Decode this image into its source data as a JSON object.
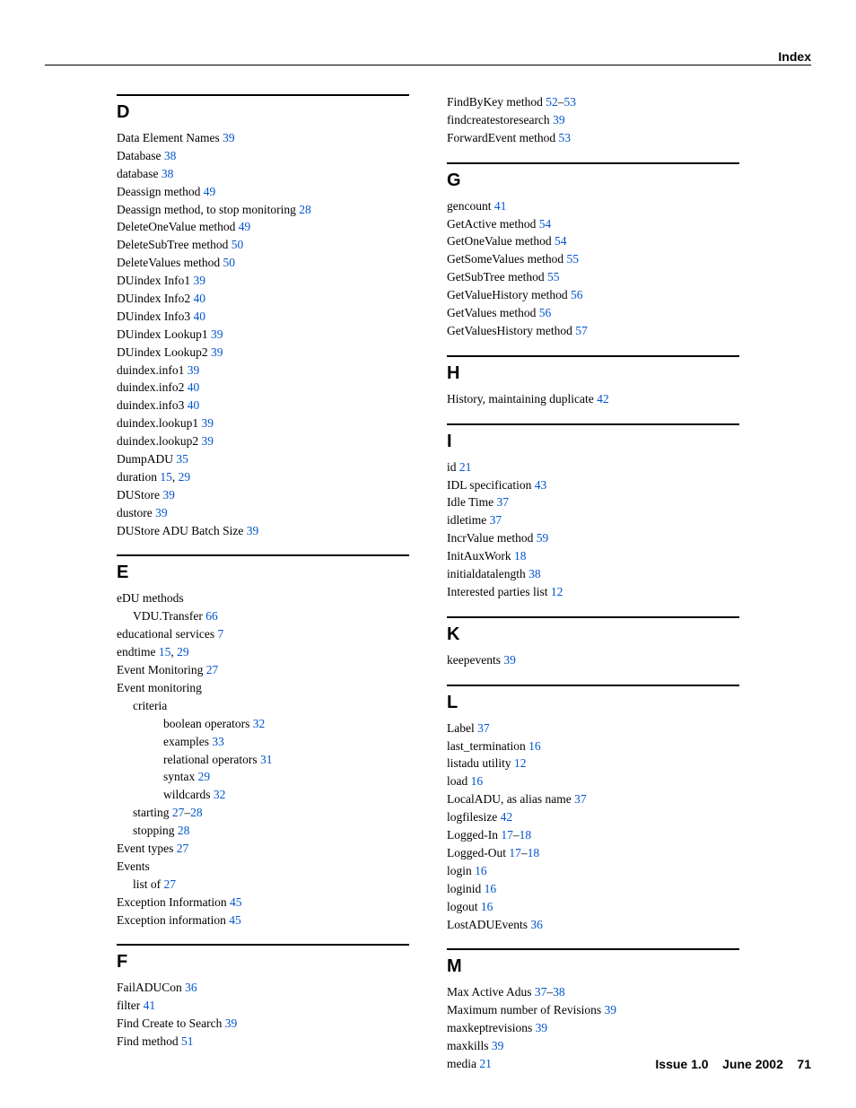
{
  "header": {
    "title": "Index"
  },
  "footer": {
    "issue": "Issue 1.0",
    "date": "June 2002",
    "page": "71"
  },
  "columns": [
    {
      "sections": [
        {
          "letter": "D",
          "entries": [
            {
              "indent": 0,
              "text": "Data Element Names",
              "pages": [
                "39"
              ]
            },
            {
              "indent": 0,
              "text": "Database",
              "pages": [
                "38"
              ]
            },
            {
              "indent": 0,
              "text": "database",
              "pages": [
                "38"
              ]
            },
            {
              "indent": 0,
              "text": "Deassign method",
              "pages": [
                "49"
              ]
            },
            {
              "indent": 0,
              "text": "Deassign method, to stop monitoring",
              "pages": [
                "28"
              ]
            },
            {
              "indent": 0,
              "text": "DeleteOneValue method",
              "pages": [
                "49"
              ]
            },
            {
              "indent": 0,
              "text": "DeleteSubTree method",
              "pages": [
                "50"
              ]
            },
            {
              "indent": 0,
              "text": "DeleteValues method",
              "pages": [
                "50"
              ]
            },
            {
              "indent": 0,
              "text": "DUindex Info1",
              "pages": [
                "39"
              ]
            },
            {
              "indent": 0,
              "text": "DUindex Info2",
              "pages": [
                "40"
              ]
            },
            {
              "indent": 0,
              "text": "DUindex Info3",
              "pages": [
                "40"
              ]
            },
            {
              "indent": 0,
              "text": "DUindex Lookup1",
              "pages": [
                "39"
              ]
            },
            {
              "indent": 0,
              "text": "DUindex Lookup2",
              "pages": [
                "39"
              ]
            },
            {
              "indent": 0,
              "text": "duindex.info1",
              "pages": [
                "39"
              ]
            },
            {
              "indent": 0,
              "text": "duindex.info2",
              "pages": [
                "40"
              ]
            },
            {
              "indent": 0,
              "text": "duindex.info3",
              "pages": [
                "40"
              ]
            },
            {
              "indent": 0,
              "text": "duindex.lookup1",
              "pages": [
                "39"
              ]
            },
            {
              "indent": 0,
              "text": "duindex.lookup2",
              "pages": [
                "39"
              ]
            },
            {
              "indent": 0,
              "text": "DumpADU",
              "pages": [
                "35"
              ]
            },
            {
              "indent": 0,
              "text": "duration",
              "pages": [
                "15",
                "29"
              ],
              "sep": ", "
            },
            {
              "indent": 0,
              "text": "DUStore",
              "pages": [
                "39"
              ]
            },
            {
              "indent": 0,
              "text": "dustore",
              "pages": [
                "39"
              ]
            },
            {
              "indent": 0,
              "text": "DUStore ADU Batch Size",
              "pages": [
                "39"
              ]
            }
          ]
        },
        {
          "letter": "E",
          "entries": [
            {
              "indent": 0,
              "text": "eDU methods",
              "pages": []
            },
            {
              "indent": 1,
              "text": "VDU.Transfer",
              "pages": [
                "66"
              ]
            },
            {
              "indent": 0,
              "text": "educational services",
              "pages": [
                "7"
              ]
            },
            {
              "indent": 0,
              "text": "endtime",
              "pages": [
                "15",
                "29"
              ],
              "sep": ", "
            },
            {
              "indent": 0,
              "text": "Event Monitoring",
              "pages": [
                "27"
              ]
            },
            {
              "indent": 0,
              "text": "Event monitoring",
              "pages": []
            },
            {
              "indent": 1,
              "text": "criteria",
              "pages": []
            },
            {
              "indent": 2,
              "text": "boolean operators",
              "pages": [
                "32"
              ]
            },
            {
              "indent": 2,
              "text": "examples",
              "pages": [
                "33"
              ]
            },
            {
              "indent": 2,
              "text": "relational operators",
              "pages": [
                "31"
              ]
            },
            {
              "indent": 2,
              "text": "syntax",
              "pages": [
                "29"
              ]
            },
            {
              "indent": 2,
              "text": "wildcards",
              "pages": [
                "32"
              ]
            },
            {
              "indent": 1,
              "text": "starting",
              "pages": [
                "27",
                "28"
              ],
              "sep": "–"
            },
            {
              "indent": 1,
              "text": "stopping",
              "pages": [
                "28"
              ]
            },
            {
              "indent": 0,
              "text": "Event types",
              "pages": [
                "27"
              ]
            },
            {
              "indent": 0,
              "text": "Events",
              "pages": []
            },
            {
              "indent": 1,
              "text": "list of",
              "pages": [
                "27"
              ]
            },
            {
              "indent": 0,
              "text": "Exception Information",
              "pages": [
                "45"
              ]
            },
            {
              "indent": 0,
              "text": "Exception information",
              "pages": [
                "45"
              ]
            }
          ]
        },
        {
          "letter": "F",
          "entries": [
            {
              "indent": 0,
              "text": "FailADUCon",
              "pages": [
                "36"
              ]
            },
            {
              "indent": 0,
              "text": "filter",
              "pages": [
                "41"
              ]
            },
            {
              "indent": 0,
              "text": "Find Create to Search",
              "pages": [
                "39"
              ]
            },
            {
              "indent": 0,
              "text": "Find method",
              "pages": [
                "51"
              ]
            }
          ]
        }
      ]
    },
    {
      "sections": [
        {
          "letter": "",
          "entries": [
            {
              "indent": 0,
              "text": "FindByKey method",
              "pages": [
                "52",
                "53"
              ],
              "sep": "–"
            },
            {
              "indent": 0,
              "text": "findcreatestoresearch",
              "pages": [
                "39"
              ]
            },
            {
              "indent": 0,
              "text": "ForwardEvent method",
              "pages": [
                "53"
              ]
            }
          ]
        },
        {
          "letter": "G",
          "entries": [
            {
              "indent": 0,
              "text": "gencount",
              "pages": [
                "41"
              ]
            },
            {
              "indent": 0,
              "text": "GetActive method",
              "pages": [
                "54"
              ]
            },
            {
              "indent": 0,
              "text": "GetOneValue method",
              "pages": [
                "54"
              ]
            },
            {
              "indent": 0,
              "text": "GetSomeValues method",
              "pages": [
                "55"
              ]
            },
            {
              "indent": 0,
              "text": "GetSubTree method",
              "pages": [
                "55"
              ]
            },
            {
              "indent": 0,
              "text": "GetValueHistory method",
              "pages": [
                "56"
              ]
            },
            {
              "indent": 0,
              "text": "GetValues method",
              "pages": [
                "56"
              ]
            },
            {
              "indent": 0,
              "text": "GetValuesHistory method",
              "pages": [
                "57"
              ]
            }
          ]
        },
        {
          "letter": "H",
          "entries": [
            {
              "indent": 0,
              "text": "History, maintaining duplicate",
              "pages": [
                "42"
              ]
            }
          ]
        },
        {
          "letter": "I",
          "entries": [
            {
              "indent": 0,
              "text": "id",
              "pages": [
                "21"
              ]
            },
            {
              "indent": 0,
              "text": "IDL specification",
              "pages": [
                "43"
              ]
            },
            {
              "indent": 0,
              "text": "Idle Time",
              "pages": [
                "37"
              ]
            },
            {
              "indent": 0,
              "text": "idletime",
              "pages": [
                "37"
              ]
            },
            {
              "indent": 0,
              "text": "IncrValue method",
              "pages": [
                "59"
              ]
            },
            {
              "indent": 0,
              "text": "InitAuxWork",
              "pages": [
                "18"
              ]
            },
            {
              "indent": 0,
              "text": "initialdatalength",
              "pages": [
                "38"
              ]
            },
            {
              "indent": 0,
              "text": "Interested parties list",
              "pages": [
                "12"
              ]
            }
          ]
        },
        {
          "letter": "K",
          "entries": [
            {
              "indent": 0,
              "text": "keepevents",
              "pages": [
                "39"
              ]
            }
          ]
        },
        {
          "letter": "L",
          "entries": [
            {
              "indent": 0,
              "text": "Label",
              "pages": [
                "37"
              ]
            },
            {
              "indent": 0,
              "text": "last_termination",
              "pages": [
                "16"
              ]
            },
            {
              "indent": 0,
              "text": "listadu utility",
              "pages": [
                "12"
              ]
            },
            {
              "indent": 0,
              "text": "load",
              "pages": [
                "16"
              ]
            },
            {
              "indent": 0,
              "text": "LocalADU, as alias name",
              "pages": [
                "37"
              ]
            },
            {
              "indent": 0,
              "text": "logfilesize",
              "pages": [
                "42"
              ]
            },
            {
              "indent": 0,
              "text": "Logged-In",
              "pages": [
                "17",
                "18"
              ],
              "sep": "–"
            },
            {
              "indent": 0,
              "text": "Logged-Out",
              "pages": [
                "17",
                "18"
              ],
              "sep": "–"
            },
            {
              "indent": 0,
              "text": "login",
              "pages": [
                "16"
              ]
            },
            {
              "indent": 0,
              "text": "loginid",
              "pages": [
                "16"
              ]
            },
            {
              "indent": 0,
              "text": "logout",
              "pages": [
                "16"
              ]
            },
            {
              "indent": 0,
              "text": "LostADUEvents",
              "pages": [
                "36"
              ]
            }
          ]
        },
        {
          "letter": "M",
          "entries": [
            {
              "indent": 0,
              "text": "Max Active Adus",
              "pages": [
                "37",
                "38"
              ],
              "sep": "–"
            },
            {
              "indent": 0,
              "text": "Maximum number of Revisions",
              "pages": [
                "39"
              ]
            },
            {
              "indent": 0,
              "text": "maxkeptrevisions",
              "pages": [
                "39"
              ]
            },
            {
              "indent": 0,
              "text": "maxkills",
              "pages": [
                "39"
              ]
            },
            {
              "indent": 0,
              "text": "media",
              "pages": [
                "21"
              ]
            }
          ]
        }
      ]
    }
  ]
}
